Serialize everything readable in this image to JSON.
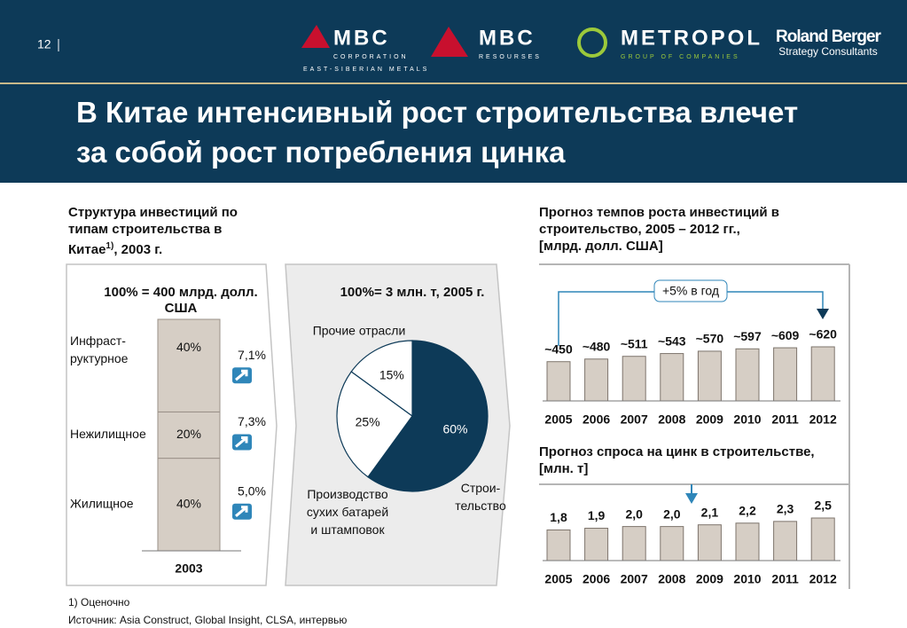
{
  "header": {
    "page_number": "12",
    "logos": [
      {
        "name": "MBC",
        "lines": [
          "CORPORATION",
          "EAST-SIBERIAN METALS"
        ]
      },
      {
        "name": "MBC",
        "lines": [
          "RESOURSES"
        ]
      },
      {
        "name": "METROPOL",
        "lines": [
          "GROUP OF COMPANIES"
        ]
      },
      {
        "name": "Roland Berger",
        "lines": [
          "Strategy Consultants"
        ]
      }
    ]
  },
  "title": "В Китае интенсивный рост строительства влечет\nза собой рост потребления цинка",
  "chart_data": [
    {
      "type": "stacked-bar",
      "title": [
        "Структура инвестиций по\nтипам строительства в\nКитае",
        "1)",
        ", 2003 г."
      ],
      "subtitle": "100% = 400 млрд. долл.\nСША",
      "categories": [
        "2003"
      ],
      "color": "#d6cec5",
      "series": [
        {
          "name": "Жилищное",
          "values": [
            40
          ],
          "value_labels": [
            "40%"
          ]
        },
        {
          "name": "Нежилищное",
          "values": [
            20
          ],
          "value_labels": [
            "20%"
          ]
        },
        {
          "name": "Инфраст-\nруктурное",
          "values": [
            40
          ],
          "value_labels": [
            "40%"
          ]
        }
      ],
      "growth": {
        "values": [
          5.0,
          7.3,
          7.1
        ],
        "value_labels": [
          "5,0%",
          "7,3%",
          "7,1%"
        ]
      }
    },
    {
      "type": "pie",
      "subtitle": "100%= 3 млн. т, 2005 г.",
      "categories": [
        "Строи-\nтельство",
        "Производство\nсухих батарей\nи штамповок",
        "Прочие отрасли"
      ],
      "values": [
        60,
        25,
        15
      ],
      "value_labels": [
        "60%",
        "25%",
        "15%"
      ],
      "colors": [
        "#0d3a58",
        "#ffffff",
        "#ffffff"
      ]
    },
    {
      "type": "bar",
      "title": "Прогноз темпов роста инвестиций в\nстроительство, 2005 – 2012 гг.,\n[млрд. долл. США]",
      "annotation": "+5% в год",
      "categories": [
        "2005",
        "2006",
        "2007",
        "2008",
        "2009",
        "2010",
        "2011",
        "2012"
      ],
      "values": [
        450,
        480,
        511,
        543,
        570,
        597,
        609,
        620
      ],
      "value_labels": [
        "~450",
        "~480",
        "~511",
        "~543",
        "~570",
        "~597",
        "~609",
        "~620"
      ],
      "color": "#d6cec5"
    },
    {
      "type": "bar",
      "title": "Прогноз спроса на цинк в строительстве,\n[млн. т]",
      "categories": [
        "2005",
        "2006",
        "2007",
        "2008",
        "2009",
        "2010",
        "2011",
        "2012"
      ],
      "values": [
        1.8,
        1.9,
        2.0,
        2.0,
        2.1,
        2.2,
        2.3,
        2.5
      ],
      "value_labels": [
        "1,8",
        "1,9",
        "2,0",
        "2,0",
        "2,1",
        "2,2",
        "2,3",
        "2,5"
      ],
      "color": "#d6cec5"
    }
  ],
  "footnotes": [
    "1)  Оценочно",
    "Источник: Asia Construct, Global Insight, CLSA, интервью"
  ]
}
